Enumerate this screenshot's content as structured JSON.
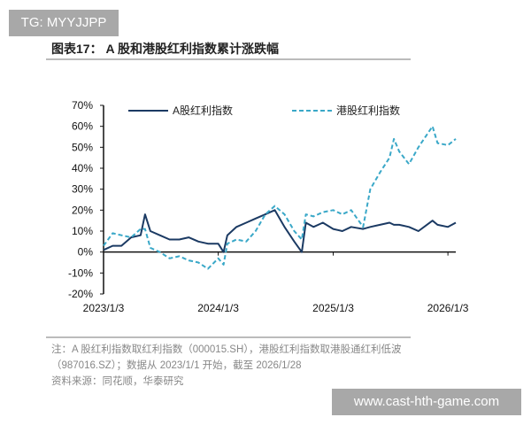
{
  "watermark_top": "TG: MYYJJPP",
  "watermark_bottom": "www.cast-hth-game.com",
  "figure_title": "图表17：  A 股和港股红利指数累计涨跌幅",
  "notes": [
    "注：A 股红利指数取红利指数（000015.SH），港股红利指数取港股通红利低波",
    "（987016.SZ）；数据从 2023/1/1 开始，截至 2026/1/28",
    "资料来源：同花顺，华泰研究"
  ],
  "chart_data": {
    "type": "line",
    "title": "",
    "xlabel": "",
    "ylabel": "",
    "ylim": [
      -20,
      70
    ],
    "yticks": [
      "70%",
      "60%",
      "50%",
      "40%",
      "30%",
      "20%",
      "10%",
      "0%",
      "-10%",
      "-20%"
    ],
    "ytick_values": [
      70,
      60,
      50,
      40,
      30,
      20,
      10,
      0,
      -10,
      -20
    ],
    "xticks": [
      "2023/1/3",
      "2024/1/3",
      "2025/1/3",
      "2026/1/3"
    ],
    "xtick_dates": [
      "2023-01-03",
      "2024-01-03",
      "2025-01-03",
      "2026-01-03"
    ],
    "xlim": [
      "2023-01-03",
      "2026-01-28"
    ],
    "grid": false,
    "legend": "top",
    "x": [
      "2023-01-03",
      "2023-02-01",
      "2023-03-01",
      "2023-04-01",
      "2023-05-01",
      "2023-05-15",
      "2023-06-01",
      "2023-07-01",
      "2023-08-01",
      "2023-09-01",
      "2023-10-01",
      "2023-11-01",
      "2023-12-01",
      "2024-01-03",
      "2024-01-20",
      "2024-02-01",
      "2024-03-01",
      "2024-04-01",
      "2024-05-01",
      "2024-06-01",
      "2024-07-01",
      "2024-08-01",
      "2024-09-01",
      "2024-09-25",
      "2024-10-08",
      "2024-11-01",
      "2024-12-01",
      "2025-01-03",
      "2025-02-01",
      "2025-03-01",
      "2025-04-08",
      "2025-05-01",
      "2025-06-01",
      "2025-07-01",
      "2025-07-15",
      "2025-08-01",
      "2025-09-01",
      "2025-10-01",
      "2025-11-15",
      "2025-12-01",
      "2026-01-03",
      "2026-01-28"
    ],
    "series": [
      {
        "name": "A股红利指数",
        "color": "#1b3a63",
        "style": "solid",
        "values": [
          1,
          3,
          3,
          7,
          8,
          18,
          10,
          8,
          6,
          6,
          7,
          5,
          4,
          4,
          0,
          8,
          12,
          14,
          16,
          18,
          20,
          12,
          5,
          0,
          14,
          12,
          14,
          11,
          10,
          12,
          11,
          12,
          13,
          14,
          13,
          13,
          12,
          10,
          15,
          13,
          12,
          14
        ]
      },
      {
        "name": "港股红利指数",
        "color": "#3aa8c8",
        "style": "dashed",
        "values": [
          3,
          9,
          8,
          7,
          11,
          11,
          2,
          0,
          -3,
          -2,
          -4,
          -5,
          -8,
          -3,
          -6,
          4,
          6,
          5,
          10,
          18,
          22,
          18,
          10,
          6,
          18,
          17,
          19,
          20,
          18,
          20,
          12,
          30,
          38,
          45,
          54,
          48,
          42,
          50,
          60,
          52,
          51,
          54
        ]
      }
    ]
  }
}
